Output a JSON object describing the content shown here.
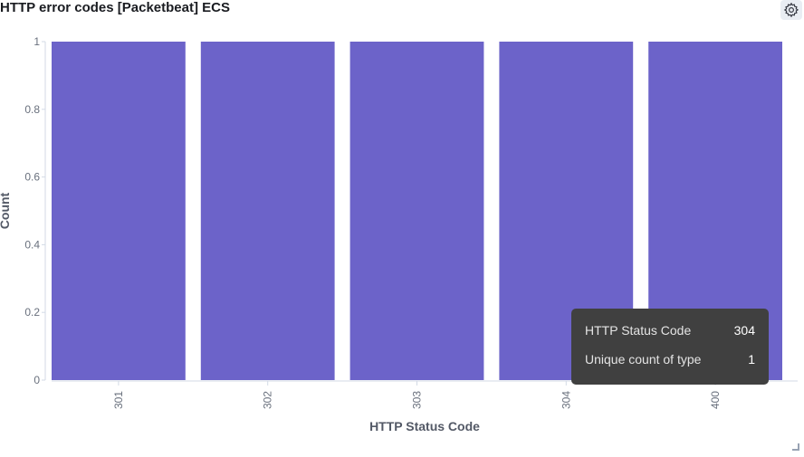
{
  "panel": {
    "title": "HTTP error codes [Packetbeat] ECS"
  },
  "icons": {
    "settings": "gear-icon",
    "resize": "resize-handle-icon"
  },
  "chart_data": {
    "type": "bar",
    "categories": [
      "301",
      "302",
      "303",
      "304",
      "400"
    ],
    "values": [
      1,
      1,
      1,
      1,
      1
    ],
    "xlabel": "HTTP Status Code",
    "ylabel": "Count",
    "ylim": [
      0,
      1
    ],
    "yticks": [
      "0",
      "0.2",
      "0.4",
      "0.6",
      "0.8",
      "1"
    ],
    "bar_color": "#6c63c9",
    "grid": false,
    "legend": "none"
  },
  "tooltip": {
    "rows": [
      {
        "label": "HTTP Status Code",
        "value": "304"
      },
      {
        "label": "Unique count of type",
        "value": "1"
      }
    ]
  }
}
